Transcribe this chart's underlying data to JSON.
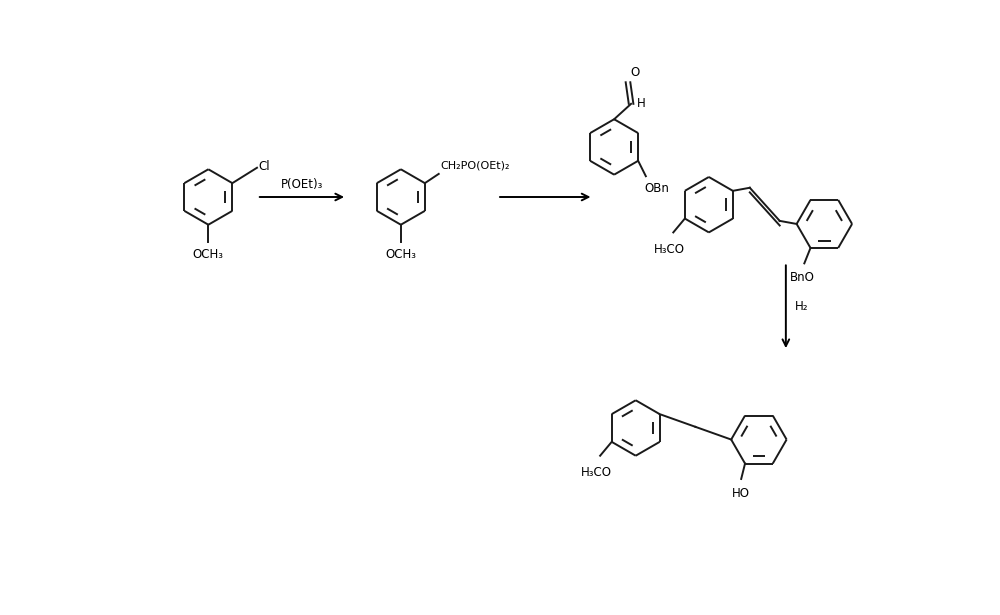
{
  "background_color": "#ffffff",
  "line_color": "#1a1a1a",
  "figsize": [
    10.0,
    6.15
  ],
  "dpi": 100,
  "arrow1_label": "P(OEt)₃",
  "arrow3_label": "H₂",
  "mol1_label": "OCH₃",
  "mol2_label": "OCH₃",
  "mol2_sub": "CH₂PO(OEt)₂",
  "mol3_obn": "OBn",
  "mol4_label1": "H₃CO",
  "mol4_label2": "BnO",
  "mol5_label1": "H₃CO",
  "mol5_label2": "HO",
  "mol1_cl": "Cl"
}
